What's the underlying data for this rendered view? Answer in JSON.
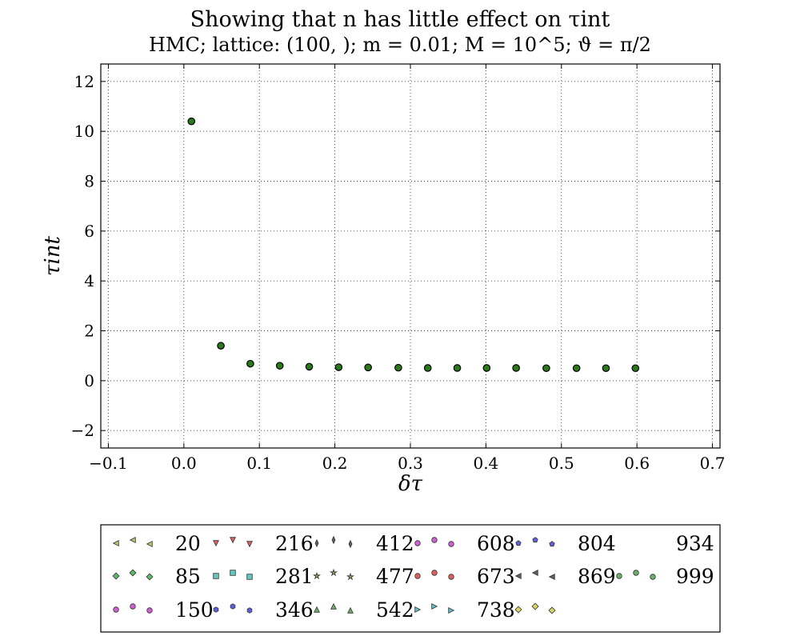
{
  "chart_data": {
    "type": "scatter",
    "title": "Showing that n has little effect on τint",
    "subtitle": "HMC; lattice: (100, ); m = 0.01; M = 10^5; ϑ = π/2",
    "xlabel": "δτ",
    "ylabel": "τint",
    "xlim": [
      -0.11,
      0.71
    ],
    "ylim": [
      -2.7,
      12.7
    ],
    "xticks": [
      "−0.1",
      "0.0",
      "0.1",
      "0.2",
      "0.3",
      "0.4",
      "0.5",
      "0.6",
      "0.7"
    ],
    "yticks": [
      "−2",
      "0",
      "2",
      "4",
      "6",
      "8",
      "10",
      "12"
    ],
    "xtick_values": [
      -0.1,
      0.0,
      0.1,
      0.2,
      0.3,
      0.4,
      0.5,
      0.6,
      0.7
    ],
    "ytick_values": [
      -2,
      0,
      2,
      4,
      6,
      8,
      10,
      12
    ],
    "grid": true,
    "legend_position": "below",
    "x": [
      0.01,
      0.049,
      0.088,
      0.127,
      0.166,
      0.205,
      0.244,
      0.284,
      0.323,
      0.362,
      0.401,
      0.44,
      0.48,
      0.52,
      0.559,
      0.598
    ],
    "y": [
      10.4,
      1.4,
      0.68,
      0.6,
      0.56,
      0.54,
      0.53,
      0.52,
      0.51,
      0.51,
      0.51,
      0.51,
      0.5,
      0.5,
      0.5,
      0.5
    ],
    "marker_color": "#2a7a1a",
    "series": [
      {
        "name": "20",
        "marker": "triangle-left",
        "color": "#b5c96a"
      },
      {
        "name": "85",
        "marker": "diamond",
        "color": "#5fb96a"
      },
      {
        "name": "150",
        "marker": "circle",
        "color": "#d060d0"
      },
      {
        "name": "216",
        "marker": "triangle-down",
        "color": "#e06060"
      },
      {
        "name": "281",
        "marker": "square",
        "color": "#60c8c0"
      },
      {
        "name": "346",
        "marker": "hexagon",
        "color": "#6060e0"
      },
      {
        "name": "412",
        "marker": "thin-diamond",
        "color": "#606060"
      },
      {
        "name": "477",
        "marker": "star",
        "color": "#9a9a5a"
      },
      {
        "name": "542",
        "marker": "triangle-up",
        "color": "#6ab06a"
      },
      {
        "name": "608",
        "marker": "circle",
        "color": "#d060d0"
      },
      {
        "name": "673",
        "marker": "circle",
        "color": "#e06060"
      },
      {
        "name": "738",
        "marker": "triangle-right",
        "color": "#60c0c8"
      },
      {
        "name": "804",
        "marker": "pentagon",
        "color": "#6060e0"
      },
      {
        "name": "869",
        "marker": "triangle-left",
        "color": "#606060"
      },
      {
        "name": "934",
        "marker": "diamond",
        "color": "#d8d860"
      },
      {
        "name": "999",
        "marker": "circle",
        "color": "#6ab06a"
      }
    ]
  }
}
